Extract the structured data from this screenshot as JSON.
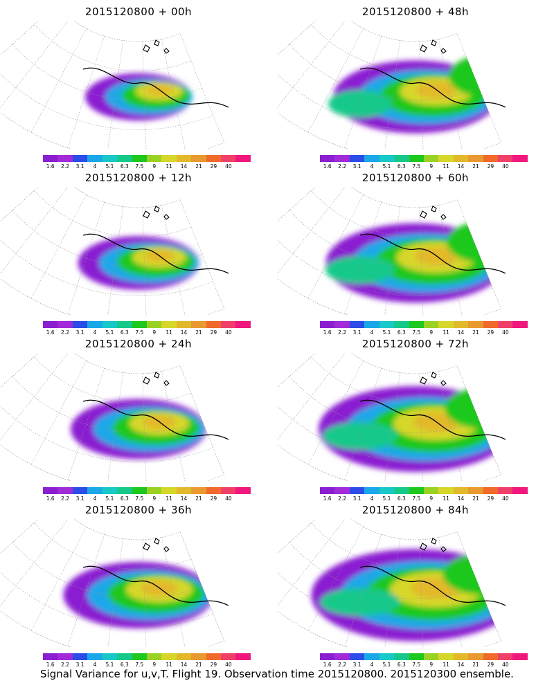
{
  "panels": [
    {
      "title": "2015120800 + 00h",
      "level": 0
    },
    {
      "title": "2015120800 + 48h",
      "level": 4
    },
    {
      "title": "2015120800 + 12h",
      "level": 1
    },
    {
      "title": "2015120800 + 60h",
      "level": 5
    },
    {
      "title": "2015120800 + 24h",
      "level": 2
    },
    {
      "title": "2015120800 + 72h",
      "level": 6
    },
    {
      "title": "2015120800 + 36h",
      "level": 3
    },
    {
      "title": "2015120800 + 84h",
      "level": 7
    }
  ],
  "colorbar": {
    "colors": [
      "#8a1fd1",
      "#a22bd9",
      "#2b4ce6",
      "#1aa8e8",
      "#18c9c9",
      "#16c98a",
      "#1ec81e",
      "#9ad224",
      "#d7d72a",
      "#e3b92c",
      "#e89a30",
      "#f06a2c",
      "#f0406a",
      "#f0187c"
    ],
    "ticks": [
      "1.6",
      "2.2",
      "3.1",
      "4",
      "5.1",
      "6.3",
      "7.5",
      "9",
      "11",
      "14",
      "21",
      "29",
      "40"
    ]
  },
  "caption": "Signal Variance for u,v,T. Flight 19. Observation time 2015120800. 2015120300 ensemble."
}
